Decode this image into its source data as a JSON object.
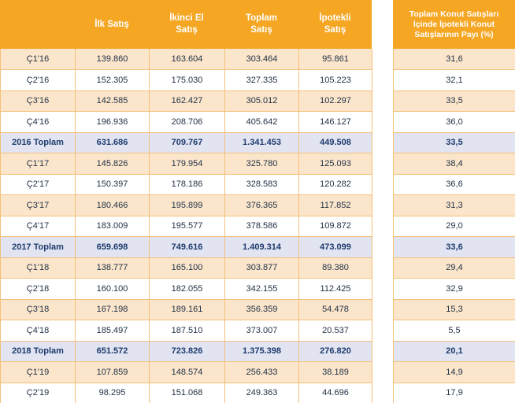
{
  "headers": {
    "c1": "İlk Satış",
    "c2_line1": "İkinci El",
    "c2_line2": "Satış",
    "c3_line1": "Toplam",
    "c3_line2": "Satış",
    "c4_line1": "İpotekli",
    "c4_line2": "Satış",
    "share_line1": "Toplam Konut Satışları",
    "share_line2": "İçinde İpotekli Konut",
    "share_line3": "Satışlarının Payı (%)"
  },
  "rows": [
    {
      "type": "odd",
      "period": "Ç1'16",
      "first": "139.860",
      "second": "163.604",
      "total": "303.464",
      "mortgage": "95.861",
      "share": "31,6"
    },
    {
      "type": "even",
      "period": "Ç2'16",
      "first": "152.305",
      "second": "175.030",
      "total": "327.335",
      "mortgage": "105.223",
      "share": "32,1"
    },
    {
      "type": "odd",
      "period": "Ç3'16",
      "first": "142.585",
      "second": "162.427",
      "total": "305.012",
      "mortgage": "102.297",
      "share": "33,5"
    },
    {
      "type": "even",
      "period": "Ç4'16",
      "first": "196.936",
      "second": "208.706",
      "total": "405.642",
      "mortgage": "146.127",
      "share": "36,0"
    },
    {
      "type": "total",
      "period": "2016 Toplam",
      "first": "631.686",
      "second": "709.767",
      "total": "1.341.453",
      "mortgage": "449.508",
      "share": "33,5"
    },
    {
      "type": "odd",
      "period": "Ç1'17",
      "first": "145.826",
      "second": "179.954",
      "total": "325.780",
      "mortgage": "125.093",
      "share": "38,4"
    },
    {
      "type": "even",
      "period": "Ç2'17",
      "first": "150.397",
      "second": "178.186",
      "total": "328.583",
      "mortgage": "120.282",
      "share": "36,6"
    },
    {
      "type": "odd",
      "period": "Ç3'17",
      "first": "180.466",
      "second": "195.899",
      "total": "376.365",
      "mortgage": "117.852",
      "share": "31,3"
    },
    {
      "type": "even",
      "period": "Ç4'17",
      "first": "183.009",
      "second": "195.577",
      "total": "378.586",
      "mortgage": "109.872",
      "share": "29,0"
    },
    {
      "type": "total",
      "period": "2017 Toplam",
      "first": "659.698",
      "second": "749.616",
      "total": "1.409.314",
      "mortgage": "473.099",
      "share": "33,6"
    },
    {
      "type": "odd",
      "period": "Ç1'18",
      "first": "138.777",
      "second": "165.100",
      "total": "303.877",
      "mortgage": "89.380",
      "share": "29,4"
    },
    {
      "type": "even",
      "period": "Ç2'18",
      "first": "160.100",
      "second": "182.055",
      "total": "342.155",
      "mortgage": "112.425",
      "share": "32,9"
    },
    {
      "type": "odd",
      "period": "Ç3'18",
      "first": "167.198",
      "second": "189.161",
      "total": "356.359",
      "mortgage": "54.478",
      "share": "15,3"
    },
    {
      "type": "even",
      "period": "Ç4'18",
      "first": "185.497",
      "second": "187.510",
      "total": "373.007",
      "mortgage": "20.537",
      "share": "5,5"
    },
    {
      "type": "total",
      "period": "2018 Toplam",
      "first": "651.572",
      "second": "723.826",
      "total": "1.375.398",
      "mortgage": "276.820",
      "share": "20,1"
    },
    {
      "type": "odd",
      "period": "Ç1'19",
      "first": "107.859",
      "second": "148.574",
      "total": "256.433",
      "mortgage": "38.189",
      "share": "14,9"
    },
    {
      "type": "even",
      "period": "Ç2'19",
      "first": "98.295",
      "second": "151.068",
      "total": "249.363",
      "mortgage": "44.696",
      "share": "17,9"
    }
  ]
}
